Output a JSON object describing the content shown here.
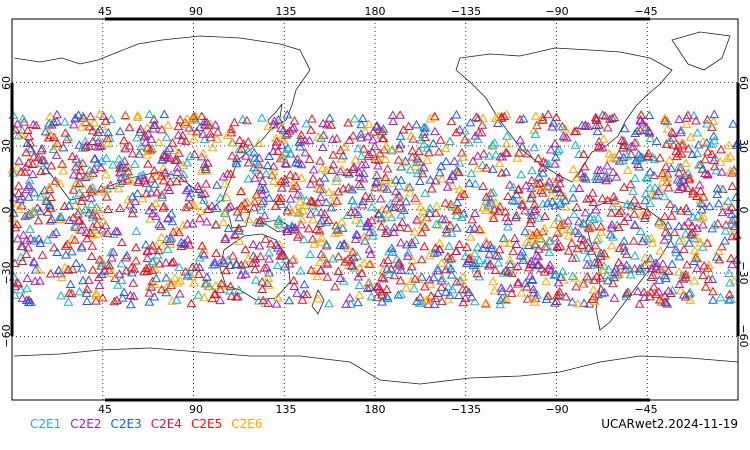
{
  "map": {
    "projection": "equirectangular",
    "lon_center": 180,
    "lon_range": [
      0,
      360
    ],
    "lat_range": [
      -90,
      90
    ],
    "grid": "dotted, every 45 deg longitude and 30 deg latitude",
    "top_lon_labels": [
      "45",
      "90",
      "135",
      "180",
      "−135",
      "−90",
      "−45"
    ],
    "bottom_lon_labels": [
      "45",
      "90",
      "135",
      "180",
      "−135",
      "−90",
      "−45"
    ],
    "left_lat_labels": [
      "60",
      "30",
      "0",
      "−30",
      "−60"
    ],
    "right_lat_labels": [
      "60",
      "30",
      "0",
      "−30",
      "−60"
    ],
    "marker_symbol": "open triangle",
    "observation_lat_band": [
      -45,
      45
    ]
  },
  "legend": [
    {
      "label": "C2E1",
      "color": "#1ab3c9"
    },
    {
      "label": "C2E2",
      "color": "#a020c0"
    },
    {
      "label": "C2E3",
      "color": "#1a5fe0"
    },
    {
      "label": "C2E4",
      "color": "#d0203a"
    },
    {
      "label": "C2E5",
      "color": "#e81010"
    },
    {
      "label": "C2E6",
      "color": "#ffaa00"
    }
  ],
  "product_label": "UCARwet2.2024-11-19"
}
